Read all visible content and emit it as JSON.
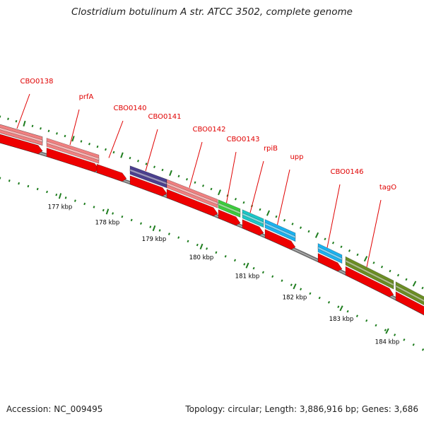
{
  "title": "Clostridium botulinum A str. ATCC 3502, complete genome",
  "footer": {
    "accession": "Accession: NC_009495",
    "summary": "Topology: circular; Length: 3,886,916 bp; Genes: 3,686"
  },
  "colors": {
    "label_red": "#e00000",
    "cds_red": "#ee0000",
    "tick_green": "#1e7d1e",
    "backbone_gray": "#888888",
    "salmon": "#f08080",
    "navy": "#4b3f8f",
    "green": "#3ccc3c",
    "cyan": "#19c7c7",
    "sky_blue": "#1ab2f0",
    "olive": "#6b8e23"
  },
  "scale_labels": [
    "177 kbp",
    "178 kbp",
    "179 kbp",
    "180 kbp",
    "181 kbp",
    "182 kbp",
    "183 kbp",
    "184 kbp"
  ],
  "genes": [
    {
      "label": "",
      "color": "#cfa0a0",
      "start": -4,
      "end": 60
    },
    {
      "label": "CBO0138",
      "color": "#f08080",
      "start": -4,
      "end": 60
    },
    {
      "label": "prfA",
      "color": "#f08080",
      "start": 66,
      "end": 140
    },
    {
      "label": "CBO0140",
      "color": "",
      "start": 137,
      "end": 179
    },
    {
      "label": "CBO0141",
      "color": "#4b3f8f",
      "start": 184,
      "end": 236
    },
    {
      "label": "CBO0142",
      "color": "#f08080",
      "start": 236,
      "end": 308
    },
    {
      "label": "CBO0143",
      "color": "#3ccc3c",
      "start": 309,
      "end": 340
    },
    {
      "label": "rpiB",
      "color": "#19c7c7",
      "start": 343,
      "end": 373
    },
    {
      "label": "upp",
      "color": "#1ab2f0",
      "start": 375,
      "end": 418
    },
    {
      "label": "CBO0146",
      "color": "#1ab2f0",
      "start": 450,
      "end": 484
    },
    {
      "label": "tagO",
      "color": "#6b8e23",
      "start": 489,
      "end": 557
    },
    {
      "label": "",
      "color": "#6b8e23",
      "start": 560,
      "end": 608
    }
  ]
}
